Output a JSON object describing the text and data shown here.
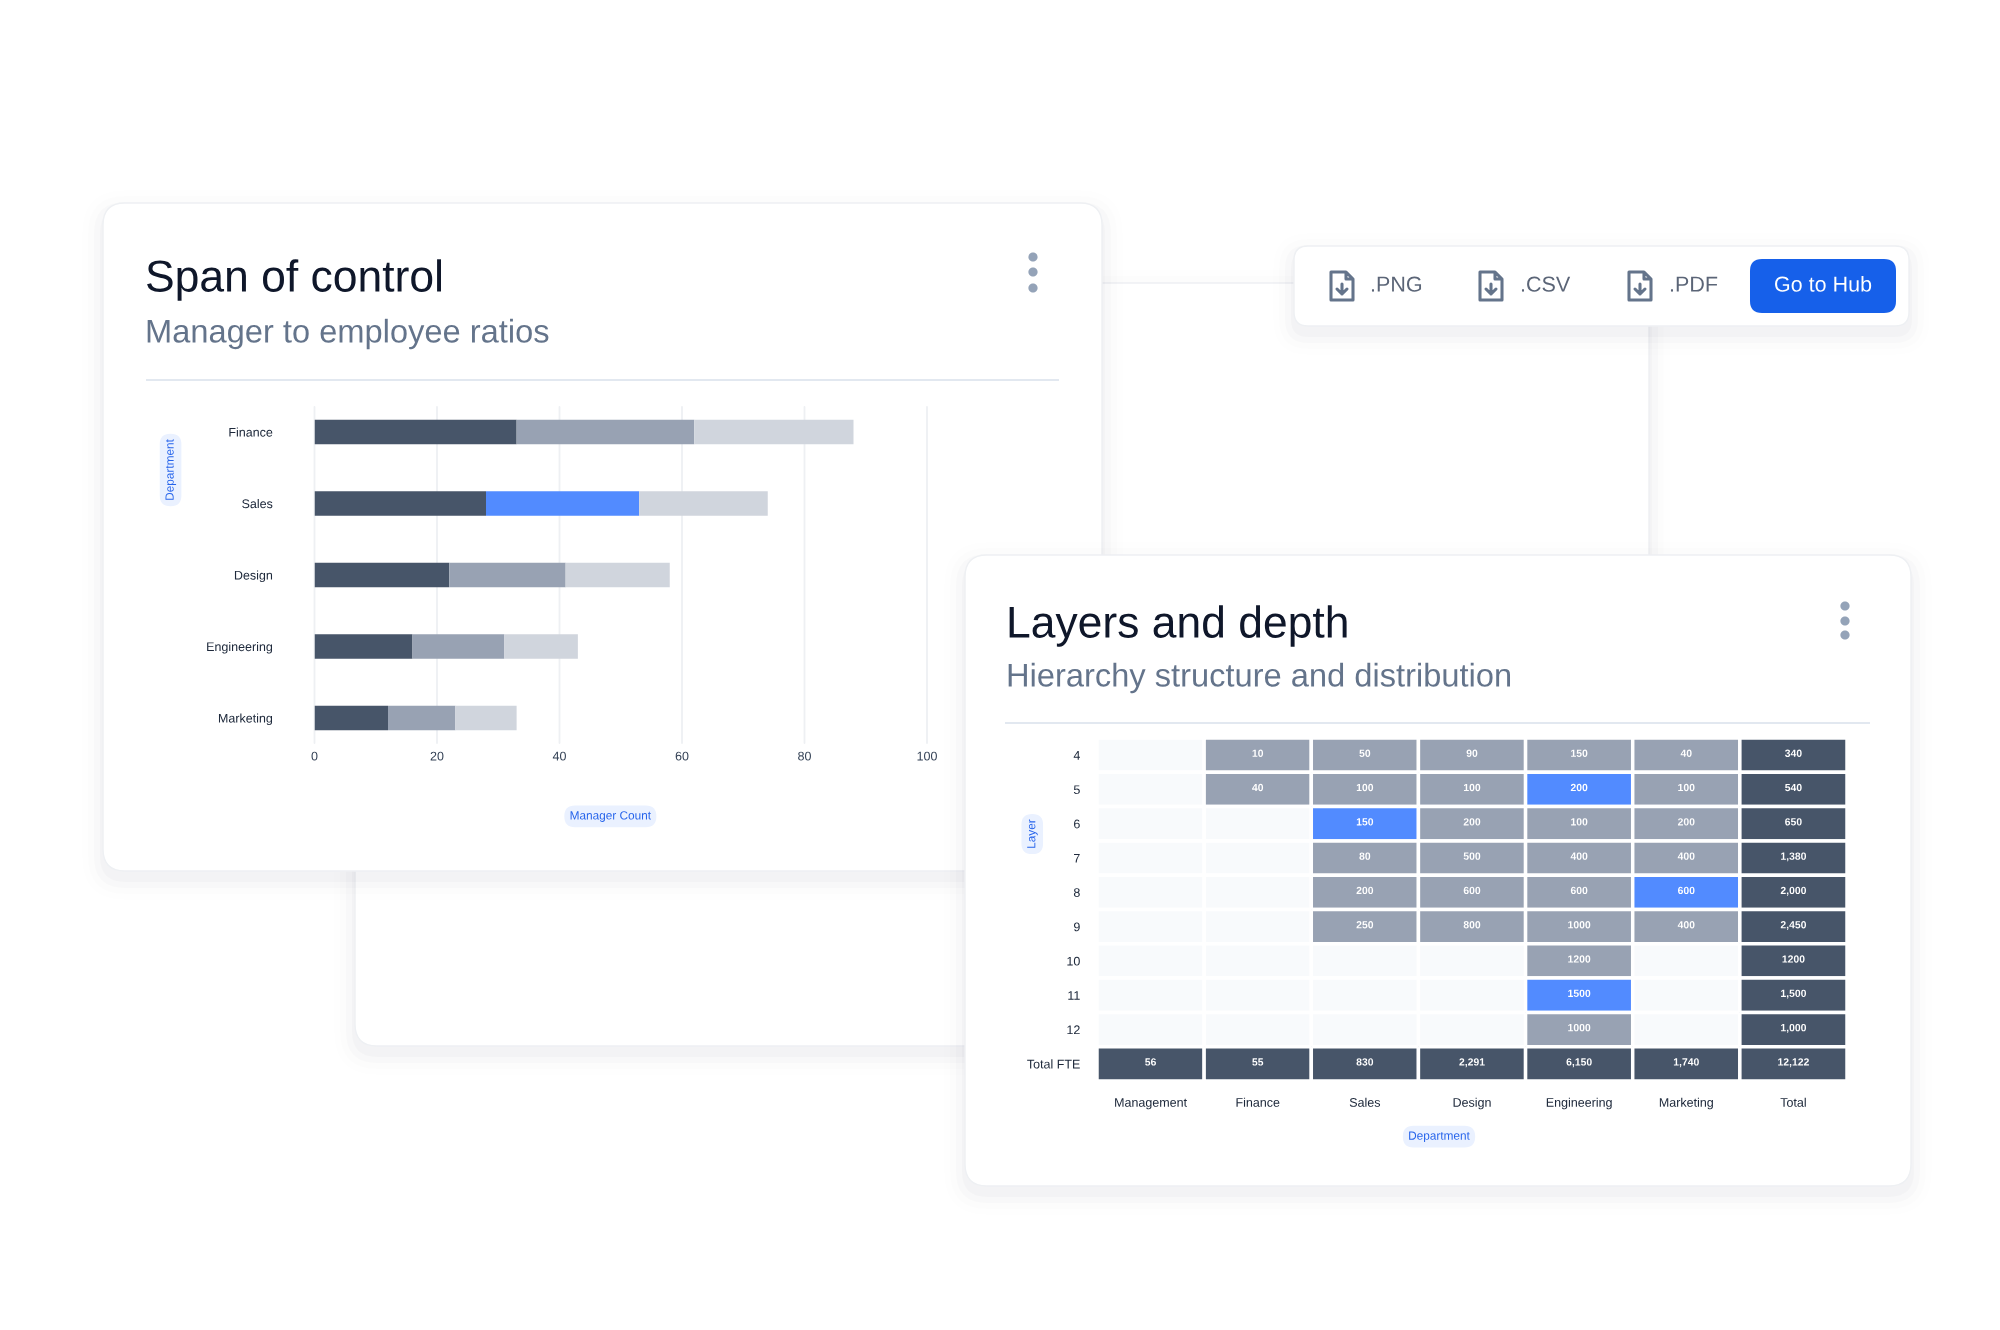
{
  "chart_data": [
    {
      "type": "bar",
      "orientation": "horizontal",
      "stacked": true,
      "title": "Span of control",
      "subtitle": "Manager to employee ratios",
      "xlabel": "Manager Count",
      "ylabel": "Department",
      "categories": [
        "Finance",
        "Sales",
        "Design",
        "Engineering",
        "Marketing"
      ],
      "series": [
        {
          "color": "#475569",
          "values": [
            33,
            28,
            22,
            16,
            12
          ]
        },
        {
          "colors": [
            "#98a2b3",
            "#528bff",
            "#98a2b3",
            "#98a2b3",
            "#98a2b3"
          ],
          "values": [
            29,
            25,
            19,
            15,
            11
          ]
        },
        {
          "color": "#d0d5dd",
          "values": [
            26,
            21,
            17,
            12,
            10
          ]
        }
      ],
      "xlim": [
        0,
        100
      ],
      "xticks": [
        0,
        20,
        40,
        60,
        80,
        100
      ],
      "grid": "x"
    },
    {
      "type": "other",
      "annotations": [
        ".PNG",
        ".CSV",
        ".PDF",
        "Go to Hub"
      ]
    },
    {
      "type": "heatmap",
      "title": "Layers and depth",
      "subtitle": "Hierarchy structure and distribution",
      "xlabel": "Department",
      "ylabel": "Layer",
      "categories": [
        "Management",
        "Finance",
        "Sales",
        "Design",
        "Engineering",
        "Marketing",
        "Total"
      ],
      "y_categories": [
        "4",
        "5",
        "6",
        "7",
        "8",
        "9",
        "10",
        "11",
        "12",
        "Total FTE"
      ],
      "cells": [
        [
          null,
          10,
          50,
          90,
          150,
          40,
          340
        ],
        [
          null,
          40,
          100,
          100,
          200,
          100,
          540
        ],
        [
          null,
          null,
          150,
          200,
          100,
          200,
          650
        ],
        [
          null,
          null,
          80,
          500,
          400,
          400,
          1380
        ],
        [
          null,
          null,
          200,
          600,
          600,
          600,
          2000
        ],
        [
          null,
          null,
          250,
          800,
          1000,
          400,
          2450
        ],
        [
          null,
          null,
          null,
          null,
          1200,
          null,
          1200
        ],
        [
          null,
          null,
          null,
          null,
          1500,
          null,
          1500
        ],
        [
          null,
          null,
          null,
          null,
          1000,
          null,
          1000
        ],
        [
          56,
          55,
          830,
          2291,
          6150,
          1740,
          12122
        ]
      ],
      "cell_labels": [
        [
          null,
          "10",
          "50",
          "90",
          "150",
          "40",
          "340"
        ],
        [
          null,
          "40",
          "100",
          "100",
          "200",
          "100",
          "540"
        ],
        [
          null,
          null,
          "150",
          "200",
          "100",
          "200",
          "650"
        ],
        [
          null,
          null,
          "80",
          "500",
          "400",
          "400",
          "1,380"
        ],
        [
          null,
          null,
          "200",
          "600",
          "600",
          "600",
          "2,000"
        ],
        [
          null,
          null,
          "250",
          "800",
          "1000",
          "400",
          "2,450"
        ],
        [
          null,
          null,
          null,
          null,
          "1200",
          null,
          "1200"
        ],
        [
          null,
          null,
          null,
          null,
          "1500",
          null,
          "1,500"
        ],
        [
          null,
          null,
          null,
          null,
          "1000",
          null,
          "1,000"
        ],
        [
          "56",
          "55",
          "830",
          "2,291",
          "6,150",
          "1,740",
          "12,122"
        ]
      ],
      "colors": [
        [
          null,
          "#98a2b3",
          "#98a2b3",
          "#98a2b3",
          "#98a2b3",
          "#98a2b3",
          "#475569"
        ],
        [
          null,
          "#98a2b3",
          "#98a2b3",
          "#98a2b3",
          "#528bff",
          "#98a2b3",
          "#475569"
        ],
        [
          null,
          null,
          "#528bff",
          "#98a2b3",
          "#98a2b3",
          "#98a2b3",
          "#475569"
        ],
        [
          null,
          null,
          "#98a2b3",
          "#98a2b3",
          "#98a2b3",
          "#98a2b3",
          "#475569"
        ],
        [
          null,
          null,
          "#98a2b3",
          "#98a2b3",
          "#98a2b3",
          "#528bff",
          "#475569"
        ],
        [
          null,
          null,
          "#98a2b3",
          "#98a2b3",
          "#98a2b3",
          "#98a2b3",
          "#475569"
        ],
        [
          null,
          null,
          null,
          null,
          "#98a2b3",
          null,
          "#475569"
        ],
        [
          null,
          null,
          null,
          null,
          "#528bff",
          null,
          "#475569"
        ],
        [
          null,
          null,
          null,
          null,
          "#98a2b3",
          null,
          "#475569"
        ],
        [
          "#475569",
          "#475569",
          "#475569",
          "#475569",
          "#475569",
          "#475569",
          "#475569"
        ]
      ]
    }
  ]
}
